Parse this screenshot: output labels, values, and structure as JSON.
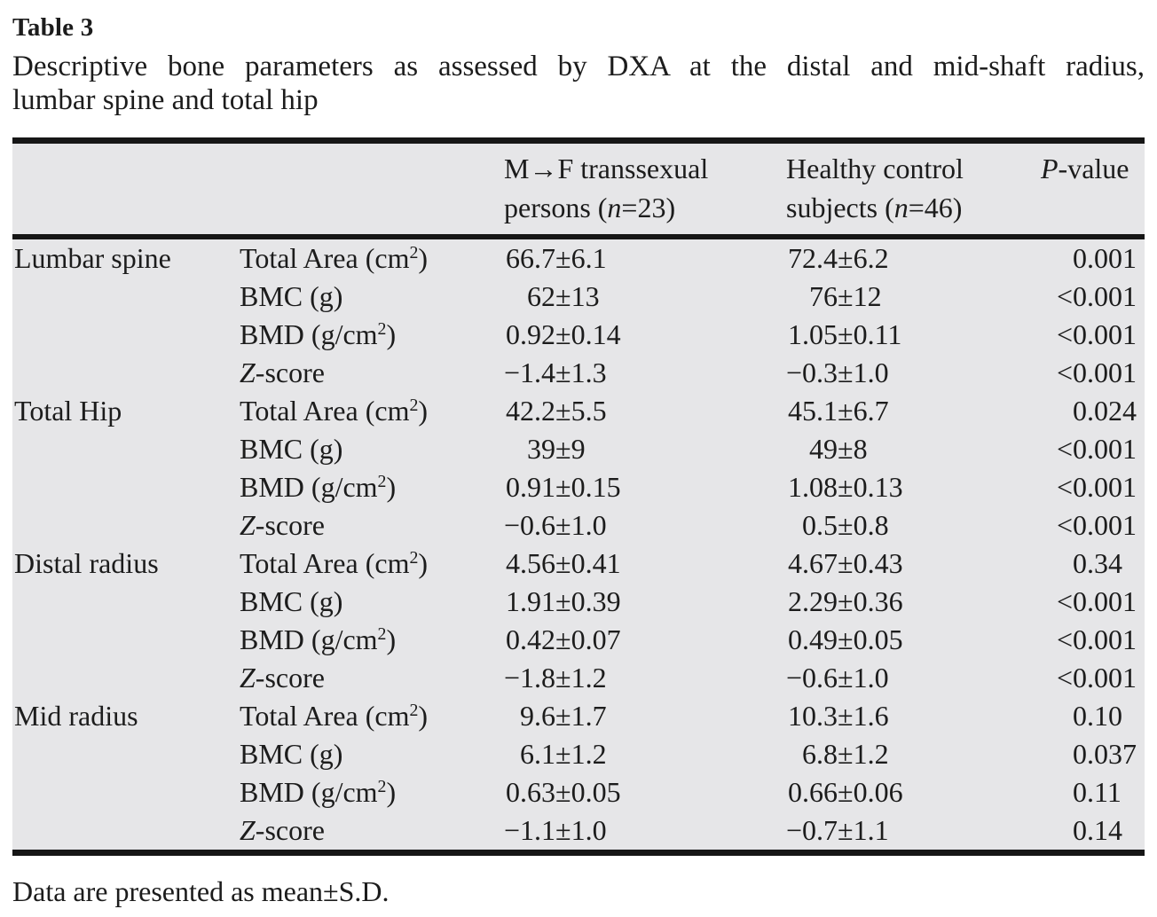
{
  "page": {
    "title": "Table 3",
    "caption_line1": "Descriptive bone parameters as assessed by DXA at the distal and mid-shaft radius,",
    "caption_line2": "lumbar spine and total hip",
    "footnote": "Data are presented as mean±S.D."
  },
  "table": {
    "header": {
      "group1": "M→F transsexual persons (n=23)",
      "group2": "Healthy control subjects (n=46)",
      "pvalue": "P-value"
    },
    "rows": [
      {
        "region": "Lumbar spine",
        "param": "Total Area (cm²)",
        "g1": "66.7±6.1",
        "g2": "72.4±6.2",
        "p": "0.001"
      },
      {
        "region": "",
        "param": "BMC (g)",
        "g1": "62±13",
        "g2": "76±12",
        "p": "<0.001"
      },
      {
        "region": "",
        "param": "BMD (g/cm²)",
        "g1": "0.92±0.14",
        "g2": "1.05±0.11",
        "p": "<0.001"
      },
      {
        "region": "",
        "param": "Z-score",
        "g1": "−1.4±1.3",
        "g2": "−0.3±1.0",
        "p": "<0.001"
      },
      {
        "region": "Total Hip",
        "param": "Total Area (cm²)",
        "g1": "42.2±5.5",
        "g2": "45.1±6.7",
        "p": "0.024"
      },
      {
        "region": "",
        "param": "BMC (g)",
        "g1": "39±9",
        "g2": "49±8",
        "p": "<0.001"
      },
      {
        "region": "",
        "param": "BMD (g/cm²)",
        "g1": "0.91±0.15",
        "g2": "1.08±0.13",
        "p": "<0.001"
      },
      {
        "region": "",
        "param": "Z-score",
        "g1": "−0.6±1.0",
        "g2": "0.5±0.8",
        "p": "<0.001"
      },
      {
        "region": "Distal radius",
        "param": "Total Area (cm²)",
        "g1": "4.56±0.41",
        "g2": "4.67±0.43",
        "p": "0.34"
      },
      {
        "region": "",
        "param": "BMC (g)",
        "g1": "1.91±0.39",
        "g2": "2.29±0.36",
        "p": "<0.001"
      },
      {
        "region": "",
        "param": "BMD (g/cm²)",
        "g1": "0.42±0.07",
        "g2": "0.49±0.05",
        "p": "<0.001"
      },
      {
        "region": "",
        "param": "Z-score",
        "g1": "−1.8±1.2",
        "g2": "−0.6±1.0",
        "p": "<0.001"
      },
      {
        "region": "Mid radius",
        "param": "Total Area (cm²)",
        "g1": "9.6±1.7",
        "g2": "10.3±1.6",
        "p": "0.10"
      },
      {
        "region": "",
        "param": "BMC (g)",
        "g1": "6.1±1.2",
        "g2": "6.8±1.2",
        "p": "0.037"
      },
      {
        "region": "",
        "param": "BMD (g/cm²)",
        "g1": "0.63±0.05",
        "g2": "0.66±0.06",
        "p": "0.11"
      },
      {
        "region": "",
        "param": "Z-score",
        "g1": "−1.1±1.0",
        "g2": "−0.7±1.1",
        "p": "0.14"
      }
    ]
  },
  "colors": {
    "table_background": "#e6e6e8",
    "rule": "#161616",
    "text": "#1c1c1c"
  }
}
